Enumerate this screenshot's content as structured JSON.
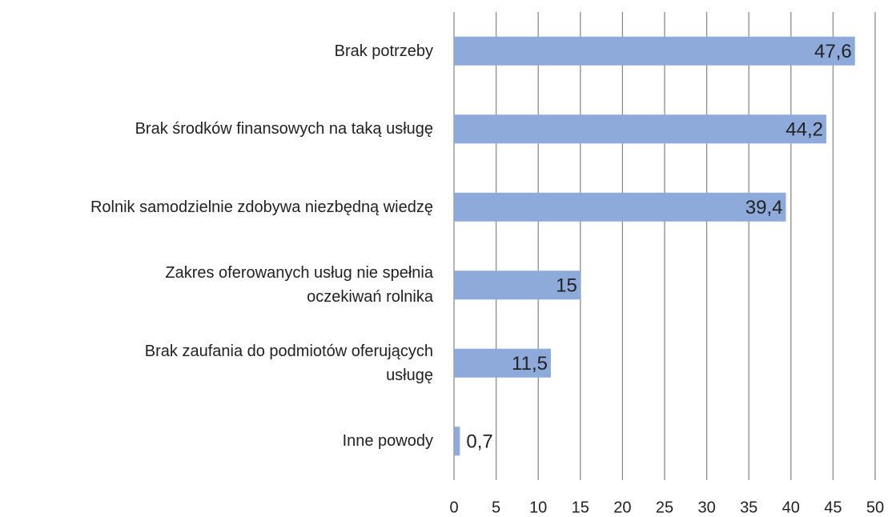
{
  "chart_data": {
    "type": "barh",
    "categories": [
      "Brak potrzeby",
      "Brak środków finansowych na taką usługę",
      "Rolnik samodzielnie zdobywa niezbędną wiedzę",
      "Zakres oferowanych usług nie spełnia\noczekiwań rolnika ",
      "Brak zaufania do podmiotów oferujących\nusługę",
      "Inne powody"
    ],
    "values": [
      47.6,
      44.2,
      39.4,
      15,
      11.5,
      0.7
    ],
    "value_labels": [
      "47,6",
      "44,2",
      "39,4",
      "15",
      "11,5",
      "0,7"
    ],
    "color": "#8eaadb",
    "xlim": [
      0,
      50
    ],
    "xticks": [
      0,
      5,
      10,
      15,
      20,
      25,
      30,
      35,
      40,
      45,
      50
    ],
    "grid": true
  }
}
